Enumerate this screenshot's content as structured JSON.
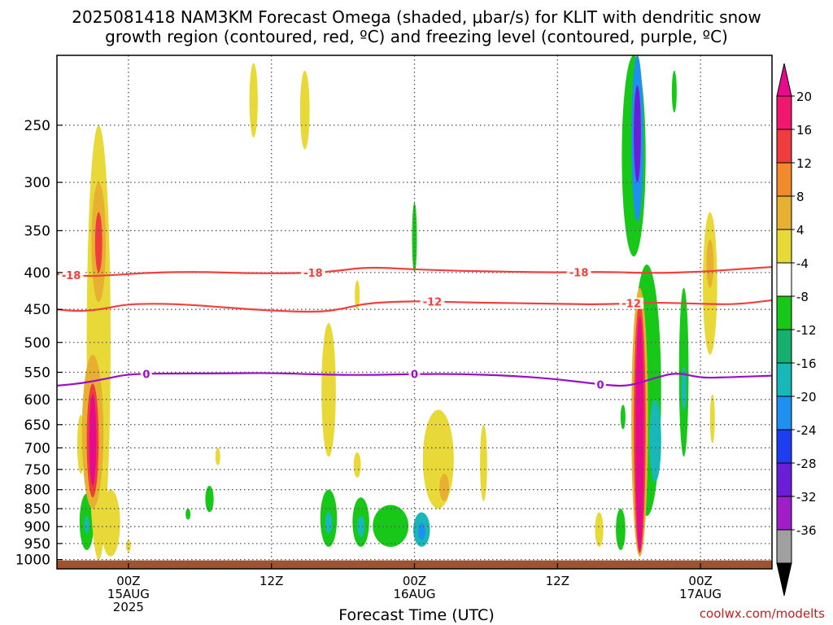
{
  "title_line1": "2025081418 NAM3KM Forecast Omega (shaded, μbar/s) for KLIT with dendritic snow",
  "title_line2": "growth region (contoured, red, ºC) and freezing level (contoured, purple, ºC)",
  "credit": "coolwx.com/modelts",
  "chart_data": {
    "type": "heatmap",
    "xlabel": "Forecast Time (UTC)",
    "ylabel": "",
    "y_scale": "log-pressure",
    "y_axis_inverted": true,
    "ylim_hPa": [
      1000,
      200
    ],
    "y_ticks_hPa": [
      250,
      300,
      350,
      400,
      450,
      500,
      550,
      600,
      650,
      700,
      750,
      800,
      850,
      900,
      950,
      1000
    ],
    "x_ticks": [
      {
        "hour": 0,
        "label": "00Z",
        "sub": "15AUG",
        "sub2": "2025"
      },
      {
        "hour": 12,
        "label": "12Z",
        "sub": "",
        "sub2": ""
      },
      {
        "hour": 24,
        "label": "00Z",
        "sub": "16AUG",
        "sub2": ""
      },
      {
        "hour": 36,
        "label": "12Z",
        "sub": "",
        "sub2": ""
      },
      {
        "hour": 48,
        "label": "00Z",
        "sub": "17AUG",
        "sub2": ""
      }
    ],
    "xlim_hours_from_15AUG_00Z": [
      -6,
      54
    ],
    "grid": true,
    "colorbar": {
      "labels": [
        "20",
        "16",
        "12",
        "8",
        "4",
        "-4",
        "-8",
        "-12",
        "-16",
        "-20",
        "-24",
        "-28",
        "-32",
        "-36"
      ],
      "colors": [
        "#f0186e",
        "#f03c3c",
        "#f08a2a",
        "#e8b030",
        "#e8d838",
        "#ffffff",
        "#18c818",
        "#16b06e",
        "#18b8b8",
        "#1e90f0",
        "#1e3cf0",
        "#6a1ed8",
        "#a01ec8",
        "#a0a0a0"
      ],
      "top_extension_color": "#e80a8c",
      "bottom_extension_color": "#000000"
    },
    "contours": [
      {
        "kind": "isotherm",
        "label": "-18",
        "color": "#f04040",
        "x_hours": [
          -6,
          -3.5,
          -1,
          2,
          6,
          10,
          14,
          17,
          20,
          24,
          28,
          32,
          36,
          40,
          44,
          48,
          51,
          54
        ],
        "y_hPa": [
          402,
          405,
          403,
          400,
          399,
          401,
          401,
          399,
          393,
          396,
          398,
          399,
          400,
          399,
          401,
          399,
          396,
          393
        ]
      },
      {
        "kind": "isotherm",
        "label": "-12",
        "color": "#f04040",
        "x_hours": [
          -6,
          -4,
          -2,
          0,
          4,
          8,
          12,
          16,
          18,
          20,
          24,
          28,
          32,
          36,
          40,
          44,
          48,
          51,
          54
        ],
        "y_hPa": [
          450,
          453,
          449,
          442,
          442,
          447,
          452,
          454,
          449,
          441,
          438,
          440,
          441,
          442,
          443,
          440,
          442,
          443,
          437
        ]
      },
      {
        "kind": "freezing-level",
        "label": "0",
        "color": "#9a10c8",
        "x_hours": [
          -6,
          -4,
          -2,
          0,
          4,
          8,
          12,
          16,
          20,
          24,
          28,
          32,
          36,
          40,
          42,
          44,
          46,
          48,
          50,
          54
        ],
        "y_hPa": [
          574,
          570,
          562,
          553,
          552,
          552,
          551,
          554,
          555,
          553,
          553,
          556,
          562,
          573,
          575,
          561,
          550,
          560,
          559,
          556
        ]
      }
    ],
    "omega_regions": [
      {
        "x_hours": -4,
        "halfwidth_h": 0.3,
        "p_top_hPa": 630,
        "p_bot_hPa": 760,
        "value": 4
      },
      {
        "x_hours": -3.5,
        "halfwidth_h": 0.6,
        "p_top_hPa": 810,
        "p_bot_hPa": 970,
        "value": -8
      },
      {
        "x_hours": -3.5,
        "halfwidth_h": 0.2,
        "p_top_hPa": 870,
        "p_bot_hPa": 920,
        "value": -12
      },
      {
        "x_hours": -2.5,
        "halfwidth_h": 1.0,
        "p_top_hPa": 250,
        "p_bot_hPa": 1000,
        "value": 4
      },
      {
        "x_hours": -2.5,
        "halfwidth_h": 0.6,
        "p_top_hPa": 300,
        "p_bot_hPa": 440,
        "value": 8
      },
      {
        "x_hours": -2.5,
        "halfwidth_h": 0.3,
        "p_top_hPa": 330,
        "p_bot_hPa": 400,
        "value": 16
      },
      {
        "x_hours": -3,
        "halfwidth_h": 0.9,
        "p_top_hPa": 520,
        "p_bot_hPa": 850,
        "value": 8
      },
      {
        "x_hours": -3,
        "halfwidth_h": 0.5,
        "p_top_hPa": 570,
        "p_bot_hPa": 820,
        "value": 16
      },
      {
        "x_hours": -3,
        "halfwidth_h": 0.3,
        "p_top_hPa": 590,
        "p_bot_hPa": 790,
        "value": 20
      },
      {
        "x_hours": -1.5,
        "halfwidth_h": 0.8,
        "p_top_hPa": 800,
        "p_bot_hPa": 990,
        "value": 4
      },
      {
        "x_hours": 0,
        "halfwidth_h": 0.2,
        "p_top_hPa": 940,
        "p_bot_hPa": 975,
        "value": 4
      },
      {
        "x_hours": 7.5,
        "halfwidth_h": 0.15,
        "p_top_hPa": 700,
        "p_bot_hPa": 740,
        "value": 4
      },
      {
        "x_hours": 6.8,
        "halfwidth_h": 0.35,
        "p_top_hPa": 790,
        "p_bot_hPa": 860,
        "value": -8
      },
      {
        "x_hours": 5,
        "halfwidth_h": 0.15,
        "p_top_hPa": 850,
        "p_bot_hPa": 880,
        "value": -8
      },
      {
        "x_hours": 10.5,
        "halfwidth_h": 0.35,
        "p_top_hPa": 205,
        "p_bot_hPa": 260,
        "value": 4
      },
      {
        "x_hours": 14.8,
        "halfwidth_h": 0.4,
        "p_top_hPa": 210,
        "p_bot_hPa": 270,
        "value": 4
      },
      {
        "x_hours": 16.8,
        "halfwidth_h": 0.6,
        "p_top_hPa": 470,
        "p_bot_hPa": 720,
        "value": 4
      },
      {
        "x_hours": 16.8,
        "halfwidth_h": 0.7,
        "p_top_hPa": 800,
        "p_bot_hPa": 960,
        "value": -8
      },
      {
        "x_hours": 16.8,
        "halfwidth_h": 0.3,
        "p_top_hPa": 860,
        "p_bot_hPa": 920,
        "value": -12
      },
      {
        "x_hours": 19.2,
        "halfwidth_h": 0.2,
        "p_top_hPa": 410,
        "p_bot_hPa": 450,
        "value": 4
      },
      {
        "x_hours": 19.2,
        "halfwidth_h": 0.3,
        "p_top_hPa": 710,
        "p_bot_hPa": 770,
        "value": 4
      },
      {
        "x_hours": 19.5,
        "halfwidth_h": 0.7,
        "p_top_hPa": 820,
        "p_bot_hPa": 960,
        "value": -8
      },
      {
        "x_hours": 19.5,
        "halfwidth_h": 0.3,
        "p_top_hPa": 870,
        "p_bot_hPa": 930,
        "value": -12
      },
      {
        "x_hours": 22,
        "halfwidth_h": 1.5,
        "p_top_hPa": 840,
        "p_bot_hPa": 960,
        "value": -8
      },
      {
        "x_hours": 24.6,
        "halfwidth_h": 0.7,
        "p_top_hPa": 860,
        "p_bot_hPa": 960,
        "value": -12
      },
      {
        "x_hours": 24.6,
        "halfwidth_h": 0.3,
        "p_top_hPa": 890,
        "p_bot_hPa": 940,
        "value": -16
      },
      {
        "x_hours": 24,
        "halfwidth_h": 0.2,
        "p_top_hPa": 320,
        "p_bot_hPa": 400,
        "value": -8
      },
      {
        "x_hours": 26,
        "halfwidth_h": 1.3,
        "p_top_hPa": 620,
        "p_bot_hPa": 850,
        "value": 4
      },
      {
        "x_hours": 26.5,
        "halfwidth_h": 0.4,
        "p_top_hPa": 760,
        "p_bot_hPa": 830,
        "value": 8
      },
      {
        "x_hours": 29.8,
        "halfwidth_h": 0.3,
        "p_top_hPa": 650,
        "p_bot_hPa": 830,
        "value": 4
      },
      {
        "x_hours": 39.5,
        "halfwidth_h": 0.35,
        "p_top_hPa": 860,
        "p_bot_hPa": 960,
        "value": 4
      },
      {
        "x_hours": 41.3,
        "halfwidth_h": 0.4,
        "p_top_hPa": 850,
        "p_bot_hPa": 970,
        "value": -8
      },
      {
        "x_hours": 41.5,
        "halfwidth_h": 0.2,
        "p_top_hPa": 610,
        "p_bot_hPa": 660,
        "value": -8
      },
      {
        "x_hours": 42.4,
        "halfwidth_h": 1.0,
        "p_top_hPa": 200,
        "p_bot_hPa": 380,
        "value": -8
      },
      {
        "x_hours": 42.7,
        "halfwidth_h": 0.5,
        "p_top_hPa": 200,
        "p_bot_hPa": 340,
        "value": -16
      },
      {
        "x_hours": 42.7,
        "halfwidth_h": 0.3,
        "p_top_hPa": 220,
        "p_bot_hPa": 300,
        "value": -24
      },
      {
        "x_hours": 43.5,
        "halfwidth_h": 1.2,
        "p_top_hPa": 390,
        "p_bot_hPa": 870,
        "value": -8
      },
      {
        "x_hours": 44.2,
        "halfwidth_h": 0.5,
        "p_top_hPa": 600,
        "p_bot_hPa": 780,
        "value": -12
      },
      {
        "x_hours": 42.9,
        "halfwidth_h": 0.7,
        "p_top_hPa": 420,
        "p_bot_hPa": 990,
        "value": 8
      },
      {
        "x_hours": 42.9,
        "halfwidth_h": 0.5,
        "p_top_hPa": 440,
        "p_bot_hPa": 980,
        "value": 16
      },
      {
        "x_hours": 42.9,
        "halfwidth_h": 0.35,
        "p_top_hPa": 460,
        "p_bot_hPa": 975,
        "value": 20
      },
      {
        "x_hours": 45.8,
        "halfwidth_h": 0.15,
        "p_top_hPa": 210,
        "p_bot_hPa": 240,
        "value": -8
      },
      {
        "x_hours": 46.6,
        "halfwidth_h": 0.4,
        "p_top_hPa": 420,
        "p_bot_hPa": 720,
        "value": -8
      },
      {
        "x_hours": 46.6,
        "halfwidth_h": 0.2,
        "p_top_hPa": 540,
        "p_bot_hPa": 620,
        "value": -12
      },
      {
        "x_hours": 48.8,
        "halfwidth_h": 0.6,
        "p_top_hPa": 330,
        "p_bot_hPa": 520,
        "value": 4
      },
      {
        "x_hours": 48.8,
        "halfwidth_h": 0.3,
        "p_top_hPa": 360,
        "p_bot_hPa": 420,
        "value": 8
      },
      {
        "x_hours": 49,
        "halfwidth_h": 0.15,
        "p_top_hPa": 590,
        "p_bot_hPa": 690,
        "value": 4
      }
    ],
    "ground_color": "#a0522d"
  }
}
